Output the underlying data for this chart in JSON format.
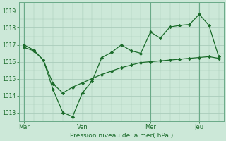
{
  "title": "",
  "xlabel": "Pression niveau de la mer( hPa )",
  "ylabel": "",
  "background_color": "#cce8d8",
  "grid_color": "#aaccbb",
  "line_color": "#1a6b2a",
  "ylim": [
    1012.5,
    1019.5
  ],
  "yticks": [
    1013,
    1014,
    1015,
    1016,
    1017,
    1018,
    1019
  ],
  "xtick_labels": [
    "Mar",
    "Ven",
    "Mer",
    "Jeu"
  ],
  "line1_x": [
    0,
    1,
    2,
    3,
    4,
    5,
    6,
    7,
    8,
    9,
    10,
    11,
    12,
    13,
    14,
    15,
    16,
    17,
    18,
    19,
    20
  ],
  "line1_y": [
    1017.0,
    1016.7,
    1016.1,
    1014.35,
    1013.0,
    1012.75,
    1014.15,
    1014.85,
    1016.25,
    1016.55,
    1017.0,
    1016.65,
    1016.5,
    1017.75,
    1017.4,
    1018.05,
    1018.15,
    1018.2,
    1018.8,
    1018.15,
    1016.3
  ],
  "line2_x": [
    0,
    1,
    2,
    3,
    4,
    5,
    6,
    7,
    8,
    9,
    10,
    11,
    12,
    13,
    14,
    15,
    16,
    17,
    18,
    19,
    20
  ],
  "line2_y": [
    1016.85,
    1016.65,
    1016.1,
    1014.7,
    1014.15,
    1014.5,
    1014.75,
    1015.0,
    1015.25,
    1015.45,
    1015.65,
    1015.8,
    1015.95,
    1016.0,
    1016.05,
    1016.1,
    1016.15,
    1016.2,
    1016.25,
    1016.3,
    1016.2
  ],
  "xtick_positions": [
    0,
    6,
    13,
    18
  ],
  "vline_positions": [
    0,
    6,
    13,
    18
  ],
  "figsize": [
    3.2,
    2.0
  ],
  "dpi": 100
}
